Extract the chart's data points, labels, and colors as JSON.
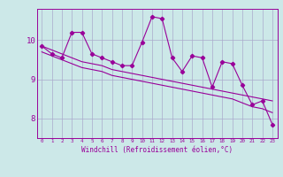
{
  "x": [
    0,
    1,
    2,
    3,
    4,
    5,
    6,
    7,
    8,
    9,
    10,
    11,
    12,
    13,
    14,
    15,
    16,
    17,
    18,
    19,
    20,
    21,
    22,
    23
  ],
  "line1": [
    9.85,
    9.65,
    9.55,
    10.2,
    10.2,
    9.65,
    9.55,
    9.45,
    9.35,
    9.35,
    9.95,
    10.6,
    10.55,
    9.55,
    9.2,
    9.6,
    9.55,
    8.8,
    9.45,
    9.4,
    8.85,
    8.35,
    8.45,
    7.85
  ],
  "trend_upper": [
    9.85,
    9.75,
    9.65,
    9.55,
    9.45,
    9.4,
    9.35,
    9.25,
    9.2,
    9.15,
    9.1,
    9.05,
    9.0,
    8.95,
    8.9,
    8.85,
    8.8,
    8.75,
    8.7,
    8.65,
    8.6,
    8.55,
    8.5,
    8.45
  ],
  "trend_lower": [
    9.7,
    9.6,
    9.5,
    9.4,
    9.3,
    9.25,
    9.2,
    9.1,
    9.05,
    9.0,
    8.95,
    8.9,
    8.85,
    8.8,
    8.75,
    8.7,
    8.65,
    8.6,
    8.55,
    8.5,
    8.4,
    8.3,
    8.25,
    8.15
  ],
  "ylim": [
    7.5,
    10.8
  ],
  "xlim": [
    -0.5,
    23.5
  ],
  "yticks": [
    8,
    9,
    10
  ],
  "xticks": [
    0,
    1,
    2,
    3,
    4,
    5,
    6,
    7,
    8,
    9,
    10,
    11,
    12,
    13,
    14,
    15,
    16,
    17,
    18,
    19,
    20,
    21,
    22,
    23
  ],
  "xlabel": "Windchill (Refroidissement éolien,°C)",
  "line_color": "#990099",
  "bg_color": "#cce8e8",
  "grid_color": "#aaaacc",
  "figsize": [
    3.2,
    2.0
  ],
  "dpi": 100
}
